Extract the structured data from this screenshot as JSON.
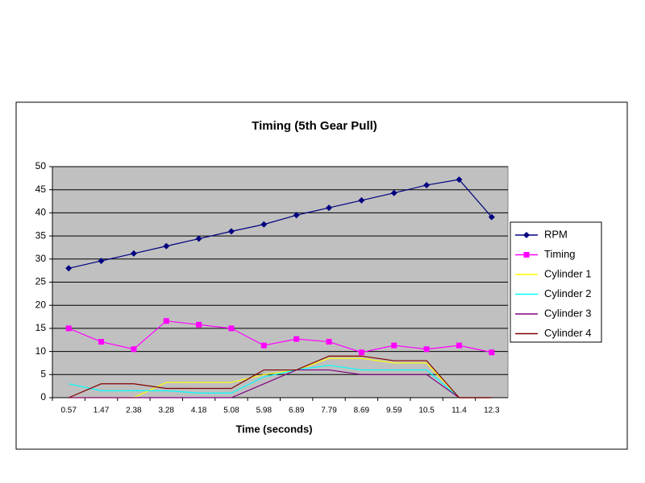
{
  "chart_data": {
    "type": "line",
    "title": "Timing (5th Gear Pull)",
    "x_label": "Time (seconds)",
    "categories": [
      "0.57",
      "1.47",
      "2.38",
      "3.28",
      "4.18",
      "5.08",
      "5.98",
      "6.89",
      "7.79",
      "8.69",
      "9.59",
      "10.5",
      "11.4",
      "12.3"
    ],
    "series": [
      {
        "name": "RPM",
        "color": "#000080",
        "marker": "diamond",
        "values": [
          28,
          29.6,
          31.2,
          32.8,
          34.4,
          36,
          37.5,
          39.5,
          41.1,
          42.7,
          44.3,
          46,
          47.2,
          39.1
        ]
      },
      {
        "name": "Timing",
        "color": "#ff00ff",
        "marker": "square",
        "values": [
          15,
          12.1,
          10.5,
          16.6,
          15.8,
          15,
          11.3,
          12.7,
          12.1,
          9.8,
          11.3,
          10.5,
          11.3,
          9.8
        ]
      },
      {
        "name": "Cylinder 1",
        "color": "#ffff00",
        "values": [
          0,
          0,
          0,
          3.3,
          3.3,
          3.3,
          5,
          6,
          8.5,
          8.5,
          7.5,
          7.5,
          0,
          0
        ]
      },
      {
        "name": "Cylinder 2",
        "color": "#00ffff",
        "values": [
          3,
          1.5,
          1.5,
          1.5,
          1,
          1,
          4.5,
          6,
          7,
          6,
          6,
          6,
          0,
          0
        ]
      },
      {
        "name": "Cylinder 3",
        "color": "#800080",
        "values": [
          0,
          0,
          0,
          0,
          0,
          0,
          3,
          6,
          6,
          5,
          5,
          5,
          0,
          0
        ]
      },
      {
        "name": "Cylinder 4",
        "color": "#800000",
        "values": [
          0,
          3,
          3,
          2,
          2,
          2,
          6,
          6,
          9,
          9,
          8,
          8,
          0,
          0
        ]
      }
    ],
    "ylim": [
      0,
      50
    ],
    "yticks": [
      0,
      5,
      10,
      15,
      20,
      25,
      30,
      35,
      40,
      45,
      50
    ],
    "grid": true,
    "legend": "right"
  }
}
